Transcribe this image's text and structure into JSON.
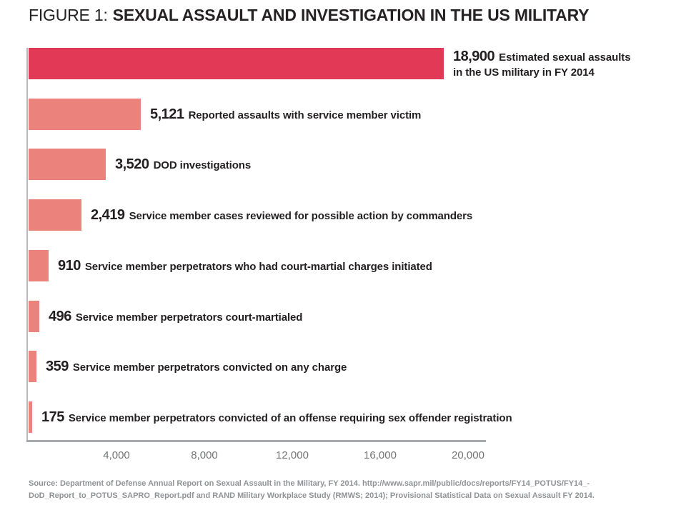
{
  "title": {
    "prefix": "FIGURE 1:",
    "text": "SEXUAL ASSAULT AND INVESTIGATION IN THE US MILITARY"
  },
  "colors": {
    "bar_highlight": "#e23a56",
    "bar_default": "#eb837c",
    "axis_line": "#a7a9ac",
    "text_dark": "#231f20",
    "tick_text": "#737476",
    "source_text": "#909295"
  },
  "chart_data": {
    "type": "bar",
    "orientation": "horizontal",
    "title": "FIGURE 1: SEXUAL ASSAULT AND INVESTIGATION IN THE US MILITARY",
    "xlim": [
      0,
      20000
    ],
    "grid": false,
    "x_ticks": [
      {
        "value": 4000,
        "label": "4,000"
      },
      {
        "value": 8000,
        "label": "8,000"
      },
      {
        "value": 12000,
        "label": "12,000"
      },
      {
        "value": 16000,
        "label": "16,000"
      },
      {
        "value": 20000,
        "label": "20,000"
      }
    ],
    "bars": [
      {
        "value": 18900,
        "value_label": "18,900",
        "label": "Estimated sexual assaults in the US military in FY 2014",
        "label_lines": [
          "Estimated sexual assaults",
          "in the US military in FY 2014"
        ],
        "highlight": true
      },
      {
        "value": 5121,
        "value_label": "5,121",
        "label": "Reported assaults with service member victim",
        "highlight": false
      },
      {
        "value": 3520,
        "value_label": "3,520",
        "label": "DOD investigations",
        "highlight": false
      },
      {
        "value": 2419,
        "value_label": "2,419",
        "label": "Service member cases reviewed for possible action by commanders",
        "highlight": false
      },
      {
        "value": 910,
        "value_label": "910",
        "label": "Service member perpetrators who had court-martial charges initiated",
        "highlight": false
      },
      {
        "value": 496,
        "value_label": "496",
        "label": "Service member perpetrators court-martialed",
        "highlight": false
      },
      {
        "value": 359,
        "value_label": "359",
        "label": "Service member perpetrators convicted on any charge",
        "highlight": false
      },
      {
        "value": 175,
        "value_label": "175",
        "label": "Service member perpetrators convicted of an offense requiring sex offender registration",
        "highlight": false
      }
    ]
  },
  "source": {
    "line1": "Source: Department of Defense Annual Report on Sexual Assault in the Military, FY 2014. http://www.sapr.mil/public/docs/reports/FY14_POTUS/FY14_-",
    "line2": "DoD_Report_to_POTUS_SAPRO_Report.pdf and RAND Military Workplace Study (RMWS; 2014); Provisional Statistical Data on Sexual Assault FY 2014."
  }
}
